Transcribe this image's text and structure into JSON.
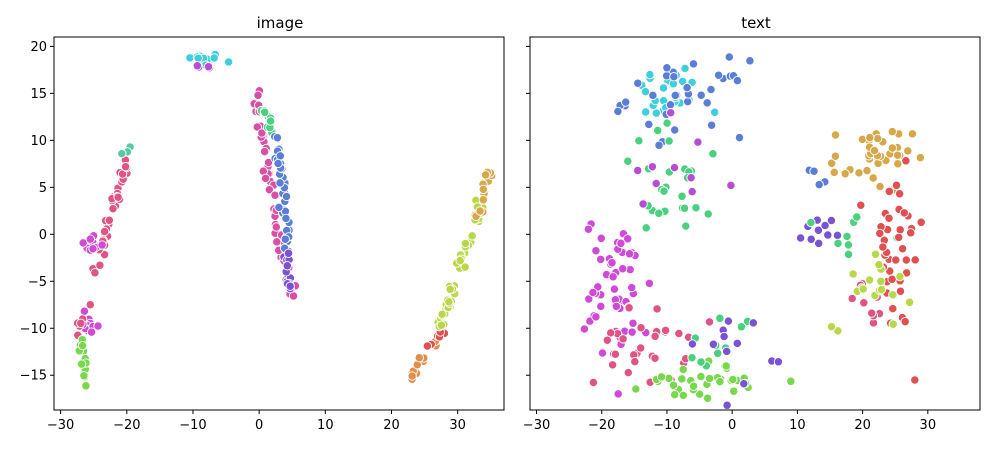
{
  "chart_data": [
    {
      "type": "scatter",
      "title": "image",
      "xlim": [
        -31,
        37
      ],
      "ylim": [
        -18.7,
        21
      ],
      "xticks": [
        -30,
        -20,
        -10,
        0,
        10,
        20,
        30
      ],
      "yticks": [
        -15,
        -10,
        -5,
        0,
        5,
        10,
        15,
        20
      ],
      "xtick_labels": [
        "−30",
        "−20",
        "−10",
        "0",
        "10",
        "20",
        "30"
      ],
      "ytick_labels": [
        "−15",
        "−10",
        "−5",
        "0",
        "5",
        "10",
        "15",
        "20"
      ],
      "grid": false,
      "clusters": [
        {
          "color": "#3ecfdc",
          "cx": -8.5,
          "cy": 18.6,
          "sx": 1.4,
          "sy": 0.35,
          "n": 18
        },
        {
          "color": "#b64dd6",
          "cx": -9.0,
          "cy": 17.8,
          "sx": 1.6,
          "sy": 0.15,
          "n": 4
        },
        {
          "color": "#d94fa5",
          "from": [
            -0.5,
            14.8
          ],
          "to": [
            4.8,
            -6.4
          ],
          "n": 60,
          "jitter": 0.35
        },
        {
          "color": "#4ad17f",
          "from": [
            0.0,
            14.0
          ],
          "to": [
            2.5,
            10.5
          ],
          "n": 12,
          "jitter": 0.35
        },
        {
          "color": "#5a7ed8",
          "from": [
            2.5,
            10.5
          ],
          "to": [
            4.5,
            -2.0
          ],
          "n": 34,
          "jitter": 0.35
        },
        {
          "color": "#7a52d6",
          "from": [
            4.0,
            -2.0
          ],
          "to": [
            4.8,
            -6.4
          ],
          "n": 14,
          "jitter": 0.3
        },
        {
          "color": "#e05485",
          "from": [
            -24.8,
            -3.6
          ],
          "to": [
            -19.2,
            9.3
          ],
          "n": 40,
          "jitter": 0.4
        },
        {
          "color": "#cf4ad7",
          "from": [
            -26.5,
            -0.8
          ],
          "to": [
            -23.5,
            -1.5
          ],
          "n": 10,
          "jitter": 0.4
        },
        {
          "color": "#57c9a5",
          "from": [
            -21.0,
            8.5
          ],
          "to": [
            -19.5,
            9.3
          ],
          "n": 3,
          "jitter": 0.2
        },
        {
          "color": "#cf4ad7",
          "from": [
            -26.5,
            -9.0
          ],
          "to": [
            -24.8,
            -10.3
          ],
          "n": 14,
          "jitter": 0.35
        },
        {
          "color": "#e05485",
          "from": [
            -27.5,
            -10.5
          ],
          "to": [
            -26.2,
            -8.0
          ],
          "n": 6,
          "jitter": 0.3
        },
        {
          "color": "#78d84c",
          "from": [
            -27.0,
            -11.0
          ],
          "to": [
            -26.2,
            -16.2
          ],
          "n": 16,
          "jitter": 0.3
        },
        {
          "color": "#e08f4a",
          "from": [
            22.8,
            -15.3
          ],
          "to": [
            28.0,
            -10.0
          ],
          "n": 18,
          "jitter": 0.3
        },
        {
          "color": "#e05050",
          "from": [
            25.0,
            -13.0
          ],
          "to": [
            28.5,
            -9.0
          ],
          "n": 10,
          "jitter": 0.3
        },
        {
          "color": "#b8d84a",
          "from": [
            27.0,
            -10.5
          ],
          "to": [
            33.5,
            3.0
          ],
          "n": 45,
          "jitter": 0.35
        },
        {
          "color": "#d6a84a",
          "from": [
            33.0,
            2.0
          ],
          "to": [
            34.9,
            6.8
          ],
          "n": 14,
          "jitter": 0.3
        }
      ]
    },
    {
      "type": "scatter",
      "title": "text",
      "xlim": [
        -31,
        38
      ],
      "ylim": [
        -18.7,
        21
      ],
      "xticks": [
        -30,
        -20,
        -10,
        0,
        10,
        20,
        30
      ],
      "yticks": [
        -15,
        -10,
        -5,
        0,
        5,
        10,
        15,
        20
      ],
      "xtick_labels": [
        "−30",
        "−20",
        "−10",
        "0",
        "10",
        "20",
        "30"
      ],
      "ytick_labels": [
        "",
        "",
        "",
        "",
        "",
        "",
        "",
        ""
      ],
      "grid": false,
      "clusters": [
        {
          "color": "#3ecfdc",
          "cx": -10.5,
          "cy": 14.8,
          "sx": 2.8,
          "sy": 1.6,
          "n": 26
        },
        {
          "color": "#5a7ed8",
          "cx": -7.0,
          "cy": 14.5,
          "sx": 4.5,
          "sy": 2.0,
          "n": 34
        },
        {
          "color": "#4ad17f",
          "cx": -8.0,
          "cy": 5.5,
          "sx": 5.0,
          "sy": 3.0,
          "n": 26
        },
        {
          "color": "#b64dd6",
          "cx": -9.0,
          "cy": 6.0,
          "sx": 5.0,
          "sy": 3.5,
          "n": 10
        },
        {
          "color": "#cf4ad7",
          "cx": -17.5,
          "cy": -6.0,
          "sx": 2.5,
          "sy": 4.0,
          "n": 55
        },
        {
          "color": "#e05485",
          "cx": -14.0,
          "cy": -12.0,
          "sx": 3.5,
          "sy": 2.0,
          "n": 28
        },
        {
          "color": "#78d84c",
          "cx": -4.5,
          "cy": -15.5,
          "sx": 4.5,
          "sy": 1.0,
          "n": 34
        },
        {
          "color": "#4ad17f",
          "cx": -2.0,
          "cy": -12.0,
          "sx": 3.0,
          "sy": 2.0,
          "n": 10
        },
        {
          "color": "#7a52d6",
          "cx": 1.0,
          "cy": -11.5,
          "sx": 3.5,
          "sy": 2.0,
          "n": 12
        },
        {
          "color": "#7a52d6",
          "cx": 13.5,
          "cy": 0.3,
          "sx": 1.2,
          "sy": 0.8,
          "n": 10
        },
        {
          "color": "#4ad17f",
          "cx": 18.0,
          "cy": 0.0,
          "sx": 2.5,
          "sy": 2.0,
          "n": 8
        },
        {
          "color": "#5a7ed8",
          "cx": 13.5,
          "cy": 6.0,
          "sx": 0.8,
          "sy": 0.5,
          "n": 4
        },
        {
          "color": "#d6a84a",
          "cx": 21.5,
          "cy": 8.0,
          "sx": 3.0,
          "sy": 1.7,
          "n": 38
        },
        {
          "color": "#e05050",
          "cx": 25.0,
          "cy": -2.0,
          "sx": 2.2,
          "sy": 4.5,
          "n": 40
        },
        {
          "color": "#e05485",
          "cx": 21.0,
          "cy": -7.5,
          "sx": 2.0,
          "sy": 1.2,
          "n": 10
        },
        {
          "color": "#b8d84a",
          "cx": 21.5,
          "cy": -5.0,
          "sx": 3.0,
          "sy": 2.5,
          "n": 18
        }
      ]
    }
  ]
}
